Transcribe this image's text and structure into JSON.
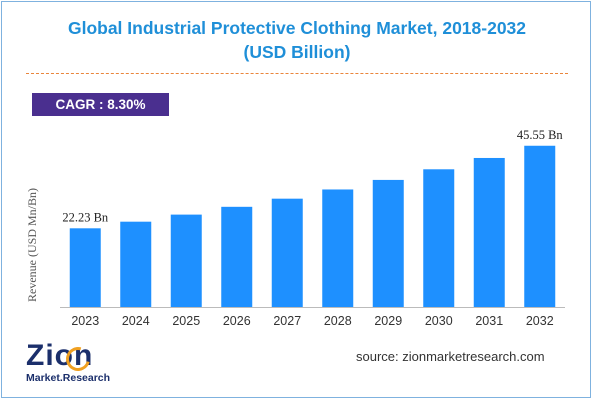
{
  "title_line1": "Global Industrial Protective Clothing Market, 2018-2032",
  "title_line2": "(USD Billion)",
  "cagr_label": "CAGR : 8.30%",
  "source": "source: zionmarketresearch.com",
  "logo": {
    "main": "Zion",
    "sub": "Market.Research"
  },
  "colors": {
    "bar": "#1e90ff",
    "title": "#1f8fd8",
    "cagr_bg": "#4a2f8f",
    "divider": "#e9853c"
  },
  "chart_data": {
    "type": "bar",
    "categories": [
      "2023",
      "2024",
      "2025",
      "2026",
      "2027",
      "2028",
      "2029",
      "2030",
      "2031",
      "2032"
    ],
    "values": [
      22.23,
      24.1,
      26.1,
      28.3,
      30.6,
      33.2,
      35.9,
      38.9,
      42.1,
      45.55
    ],
    "title": "Global Industrial Protective Clothing Market, 2018-2032 (USD Billion)",
    "xlabel": "",
    "ylabel": "Revenue (USD Mn/Bn)",
    "ylim": [
      0,
      50
    ],
    "grid": false,
    "data_labels": [
      {
        "index": 0,
        "text": "22.23 Bn"
      },
      {
        "index": 9,
        "text": "45.55 Bn"
      }
    ]
  }
}
